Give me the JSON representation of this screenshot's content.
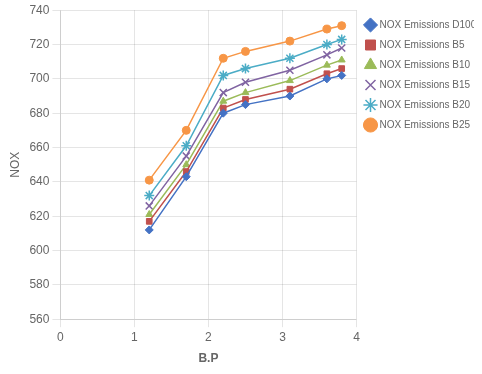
{
  "chart_data": {
    "type": "line",
    "x": [
      1.2,
      1.7,
      2.2,
      2.5,
      3.1,
      3.6,
      3.8
    ],
    "series": [
      {
        "name": "NOX Emissions D100",
        "color": "#4472C4",
        "marker": "diamond",
        "values": [
          612,
          643,
          680,
          685,
          690,
          700,
          702
        ]
      },
      {
        "name": "NOX Emissions B5",
        "color": "#C0504D",
        "marker": "square",
        "values": [
          617,
          646,
          683,
          688,
          694,
          703,
          706
        ]
      },
      {
        "name": "NOX Emissions B10",
        "color": "#9BBB59",
        "marker": "triangle",
        "values": [
          621,
          650,
          687,
          692,
          699,
          708,
          711
        ]
      },
      {
        "name": "NOX Emissions B15",
        "color": "#8064A2",
        "marker": "x",
        "values": [
          626,
          655,
          692,
          698,
          705,
          714,
          718
        ]
      },
      {
        "name": "NOX Emissions B20",
        "color": "#4BACC6",
        "marker": "star",
        "values": [
          632,
          661,
          702,
          706,
          712,
          720,
          723
        ]
      },
      {
        "name": "NOX Emissions B25",
        "color": "#F79646",
        "marker": "circle",
        "values": [
          641,
          670,
          712,
          716,
          722,
          729,
          731
        ]
      }
    ],
    "xlabel": "B.P",
    "ylabel": "NOX",
    "xlim": [
      0,
      4
    ],
    "ylim": [
      560,
      740
    ],
    "xticks": [
      0,
      1,
      2,
      3,
      4
    ],
    "yticks": [
      560,
      580,
      600,
      620,
      640,
      660,
      680,
      700,
      720,
      740
    ],
    "grid": true,
    "legend": "right"
  }
}
